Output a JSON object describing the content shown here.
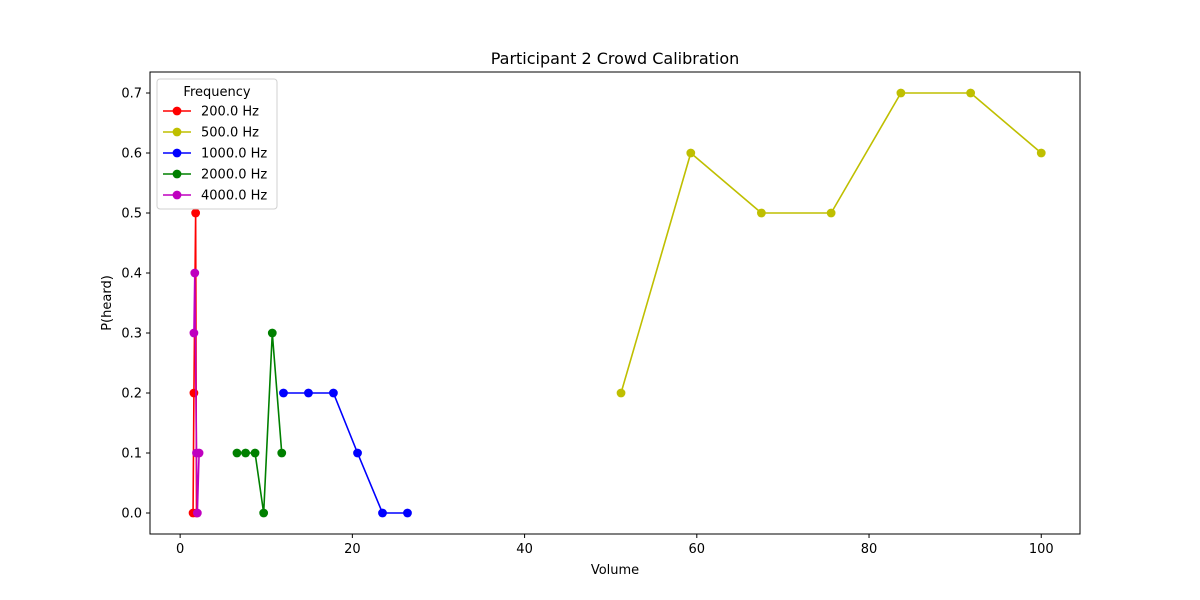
{
  "chart_data": {
    "type": "line",
    "title": "Participant 2 Crowd Calibration",
    "xlabel": "Volume",
    "ylabel": "P(heard)",
    "xlim": [
      -3.5,
      104.5
    ],
    "ylim": [
      -0.035,
      0.735
    ],
    "xticks": [
      0,
      20,
      40,
      60,
      80,
      100
    ],
    "yticks": [
      0.0,
      0.1,
      0.2,
      0.3,
      0.4,
      0.5,
      0.6,
      0.7
    ],
    "grid": false,
    "legend": {
      "title": "Frequency",
      "placement": "top-left"
    },
    "series": [
      {
        "name": "200.0 Hz",
        "color": "#ff0000",
        "points": [
          [
            1.5,
            0.0
          ],
          [
            1.6,
            0.2
          ],
          [
            1.8,
            0.5
          ],
          [
            1.9,
            0.0
          ]
        ]
      },
      {
        "name": "500.0 Hz",
        "color": "#bfbf00",
        "points": [
          [
            51.2,
            0.2
          ],
          [
            59.3,
            0.6
          ],
          [
            67.5,
            0.5
          ],
          [
            75.6,
            0.5
          ],
          [
            83.7,
            0.7
          ],
          [
            91.8,
            0.7
          ],
          [
            100.0,
            0.6
          ]
        ]
      },
      {
        "name": "1000.0 Hz",
        "color": "#0000ff",
        "points": [
          [
            12.0,
            0.2
          ],
          [
            14.9,
            0.2
          ],
          [
            17.8,
            0.2
          ],
          [
            20.6,
            0.1
          ],
          [
            23.5,
            0.0
          ],
          [
            26.4,
            0.0
          ]
        ]
      },
      {
        "name": "2000.0 Hz",
        "color": "#008000",
        "points": [
          [
            6.6,
            0.1
          ],
          [
            7.6,
            0.1
          ],
          [
            8.7,
            0.1
          ],
          [
            9.7,
            0.0
          ],
          [
            10.7,
            0.3
          ],
          [
            11.8,
            0.1
          ]
        ]
      },
      {
        "name": "4000.0 Hz",
        "color": "#bf00bf",
        "points": [
          [
            1.6,
            0.3
          ],
          [
            1.7,
            0.4
          ],
          [
            1.9,
            0.1
          ],
          [
            2.0,
            0.0
          ],
          [
            2.2,
            0.1
          ]
        ]
      }
    ]
  }
}
